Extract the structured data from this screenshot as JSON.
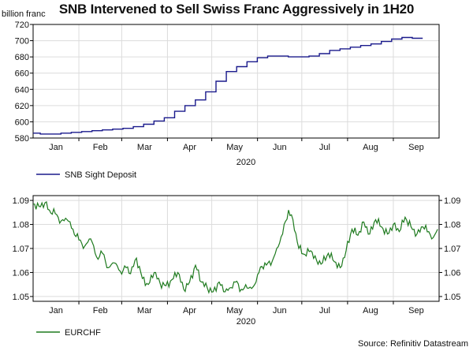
{
  "title": "SNB Intervened to Sell Swiss Franc Aggressively in 1H20",
  "source": "Source: Refinitiv Datastream",
  "chart_data": [
    {
      "type": "line",
      "unit_label": "billion franc",
      "xlabel": "2020",
      "x_tick_labels": [
        "Jan",
        "Feb",
        "Mar",
        "Apr",
        "May",
        "Jun",
        "Jul",
        "Aug",
        "Sep"
      ],
      "ylim": [
        580,
        720
      ],
      "y_ticks": [
        580,
        600,
        620,
        640,
        660,
        680,
        700,
        720
      ],
      "grid": true,
      "legend": "bottom-left",
      "series": [
        {
          "name": "SNB Sight Deposit",
          "color": "#1a1a8c",
          "step": true,
          "week_index": [
            0,
            1,
            2,
            3,
            4,
            5,
            6,
            7,
            8,
            9,
            10,
            11,
            12,
            13,
            14,
            15,
            16,
            17,
            18,
            19,
            20,
            21,
            22,
            23,
            24,
            25,
            26,
            27,
            28,
            29,
            30,
            31,
            32,
            33,
            34,
            35,
            36,
            37
          ],
          "values": [
            586,
            585,
            585,
            586,
            587,
            588,
            589,
            590,
            591,
            592,
            594,
            597,
            601,
            605,
            613,
            620,
            627,
            637,
            650,
            662,
            668,
            674,
            679,
            681,
            681,
            680,
            680,
            681,
            684,
            688,
            690,
            692,
            694,
            696,
            699,
            702,
            704,
            703
          ]
        }
      ]
    },
    {
      "type": "line",
      "xlabel": "2020",
      "x_tick_labels": [
        "Jan",
        "Feb",
        "Mar",
        "Apr",
        "May",
        "Jun",
        "Jul",
        "Aug",
        "Sep"
      ],
      "ylim": [
        1.048,
        1.092
      ],
      "y_ticks": [
        1.05,
        1.06,
        1.07,
        1.08,
        1.09
      ],
      "y_tick_labels": [
        "1.05",
        "1.06",
        "1.07",
        "1.08",
        "1.09"
      ],
      "grid": true,
      "legend": "bottom-left",
      "series": [
        {
          "name": "EURCHF",
          "color": "#1e7a1e",
          "anchor_day": [
            0,
            4,
            8,
            11,
            15,
            19,
            23,
            27,
            31,
            35,
            39,
            43,
            47,
            51,
            55,
            59,
            63,
            66,
            70,
            74,
            78,
            82,
            86,
            90,
            94,
            98,
            102,
            106,
            110,
            114,
            118,
            122,
            126,
            129,
            133,
            137,
            141,
            145,
            149,
            153,
            157,
            161,
            165,
            169,
            173,
            176,
            180,
            184,
            188,
            192,
            196,
            200,
            204,
            208,
            212,
            216,
            220,
            224,
            228,
            232,
            236,
            240,
            244,
            248,
            252,
            256,
            260,
            264,
            268,
            271,
            274
          ],
          "values": [
            1.0885,
            1.0875,
            1.089,
            1.086,
            1.0845,
            1.0815,
            1.082,
            1.078,
            1.0735,
            1.071,
            1.074,
            1.0665,
            1.068,
            1.062,
            1.064,
            1.0605,
            1.062,
            1.0595,
            1.066,
            1.0575,
            1.055,
            1.06,
            1.0555,
            1.0545,
            1.057,
            1.06,
            1.053,
            1.056,
            1.063,
            1.056,
            1.0535,
            1.052,
            1.056,
            1.052,
            1.0535,
            1.056,
            1.053,
            1.0535,
            1.054,
            1.06,
            1.064,
            1.063,
            1.07,
            1.076,
            1.086,
            1.082,
            1.07,
            1.0675,
            1.069,
            1.065,
            1.064,
            1.068,
            1.0645,
            1.062,
            1.069,
            1.078,
            1.0755,
            1.081,
            1.076,
            1.082,
            1.079,
            1.076,
            1.08,
            1.077,
            1.083,
            1.079,
            1.076,
            1.079,
            1.077,
            1.0745,
            1.078
          ]
        }
      ]
    }
  ]
}
